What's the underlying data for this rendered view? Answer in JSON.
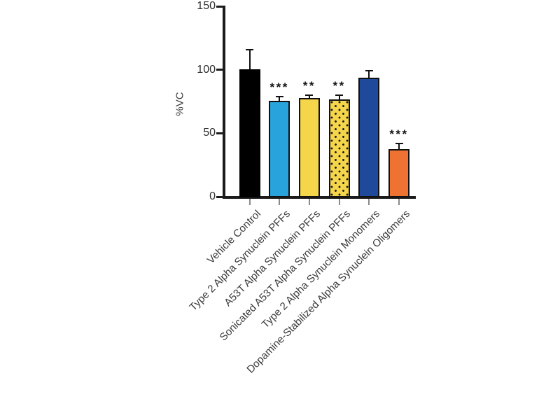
{
  "figure": {
    "background_color": "#ffffff",
    "axis_color": "#1c1c1c",
    "x_tick_color": "#8a8a8a",
    "error_bar_color": "#111111",
    "tick_label_color": "#2d2d2d",
    "category_label_color": "#3a3a3a"
  },
  "chart_data": {
    "type": "bar",
    "title": "",
    "xlabel": "",
    "ylabel": "%VC",
    "ylim": [
      0,
      150
    ],
    "yticks": [
      0,
      50,
      100,
      150
    ],
    "grid": false,
    "legend_position": "none",
    "categories": [
      "Vehicle Control",
      "Type 2 Alpha Synuclein PFFs",
      "A53T Alpha Synuclein PFFs",
      "Sonicated A53T Alpha Synuclein PFFs",
      "Type 2 Alpha Synuclein Monomers",
      "Dopamine-Stabilized Alpha Synuclein Oligomers"
    ],
    "values": [
      100,
      75,
      77,
      76,
      93,
      37
    ],
    "errors": [
      16,
      4,
      3,
      4,
      6,
      5
    ],
    "error_direction": "upper-only",
    "significance": [
      "",
      "***",
      "**",
      "**",
      "",
      "***"
    ],
    "bar_colors": [
      "#000000",
      "#29A3DC",
      "#F5D54A",
      "#F5D54A",
      "#1F4A9B",
      "#EE7231"
    ],
    "bar_patterns": [
      "solid",
      "solid",
      "solid",
      "dots",
      "solid",
      "solid"
    ],
    "bar_outline_color": "#111111"
  }
}
